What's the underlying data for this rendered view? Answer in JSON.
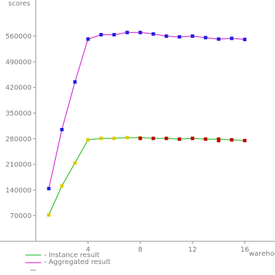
{
  "chart_data": {
    "type": "line",
    "xlabel": "warehouses",
    "ylabel": "scores",
    "xlim": [
      0,
      18
    ],
    "ylim": [
      0,
      640000
    ],
    "x_ticks": [
      4,
      8,
      12,
      16
    ],
    "y_ticks": [
      70000,
      140000,
      210000,
      280000,
      350000,
      420000,
      490000,
      560000
    ],
    "grid": false,
    "legend_position": "bottom-left",
    "series": [
      {
        "name": "- Instance result",
        "color": "#00b400",
        "points": [
          {
            "x": 1,
            "y": 72000,
            "color": "#e6c800"
          },
          {
            "x": 2,
            "y": 151000,
            "color": "#e6c800"
          },
          {
            "x": 3,
            "y": 214000,
            "color": "#e6c800"
          },
          {
            "x": 4,
            "y": 277000,
            "color": "#e6c800"
          },
          {
            "x": 5,
            "y": 281000,
            "color": "#e6c800"
          },
          {
            "x": 6,
            "y": 281000,
            "color": "#e6c800"
          },
          {
            "x": 7,
            "y": 283000,
            "color": "#e6c800"
          },
          {
            "x": 8,
            "y": 283000,
            "color": "#e6c800"
          },
          {
            "x": 8,
            "y": 281000,
            "color": "#c00000"
          },
          {
            "x": 9,
            "y": 281000,
            "color": "#c00000"
          },
          {
            "x": 10,
            "y": 281000,
            "color": "#c00000"
          },
          {
            "x": 11,
            "y": 279000,
            "color": "#c00000"
          },
          {
            "x": 12,
            "y": 281000,
            "color": "#c00000"
          },
          {
            "x": 13,
            "y": 279000,
            "color": "#c00000"
          },
          {
            "x": 14,
            "y": 279000,
            "color": "#c00000"
          },
          {
            "x": 14,
            "y": 275000,
            "color": "#c00000"
          },
          {
            "x": 15,
            "y": 277000,
            "color": "#c00000"
          },
          {
            "x": 16,
            "y": 275000,
            "color": "#c00000"
          }
        ]
      },
      {
        "name": "- Aggregated result",
        "color": "#cc00cc",
        "points": [
          {
            "x": 1,
            "y": 144000,
            "color": "#1e1ee6"
          },
          {
            "x": 2,
            "y": 305000,
            "color": "#1e1ee6"
          },
          {
            "x": 3,
            "y": 435000,
            "color": "#1e1ee6"
          },
          {
            "x": 4,
            "y": 552000,
            "color": "#1e1ee6"
          },
          {
            "x": 5,
            "y": 564000,
            "color": "#1e1ee6"
          },
          {
            "x": 6,
            "y": 564000,
            "color": "#1e1ee6"
          },
          {
            "x": 7,
            "y": 570000,
            "color": "#1e1ee6"
          },
          {
            "x": 8,
            "y": 570000,
            "color": "#1e1ee6"
          },
          {
            "x": 9,
            "y": 566000,
            "color": "#1e1ee6"
          },
          {
            "x": 10,
            "y": 560000,
            "color": "#1e1ee6"
          },
          {
            "x": 11,
            "y": 558000,
            "color": "#1e1ee6"
          },
          {
            "x": 12,
            "y": 560000,
            "color": "#1e1ee6"
          },
          {
            "x": 13,
            "y": 556000,
            "color": "#1e1ee6"
          },
          {
            "x": 14,
            "y": 552000,
            "color": "#1e1ee6"
          },
          {
            "x": 15,
            "y": 554000,
            "color": "#1e1ee6"
          },
          {
            "x": 16,
            "y": 551000,
            "color": "#1e1ee6"
          }
        ]
      }
    ]
  }
}
